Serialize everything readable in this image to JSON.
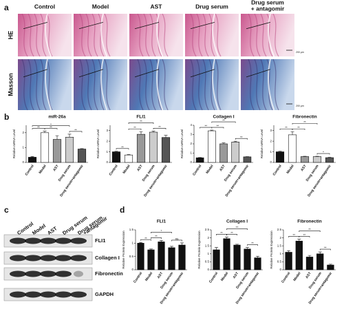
{
  "panel_labels": [
    "a",
    "b",
    "c",
    "d"
  ],
  "histology": {
    "columns": [
      [
        "Control"
      ],
      [
        "Model"
      ],
      [
        "AST"
      ],
      [
        "Drug serum"
      ],
      [
        "Drug serum",
        "+ antagomir"
      ]
    ],
    "rows": [
      "HE",
      "Masson"
    ],
    "scale_bar": "200 μm"
  },
  "western_blot": {
    "lanes": [
      [
        "Control"
      ],
      [
        "Model"
      ],
      [
        "AST"
      ],
      [
        "Drug serum"
      ],
      [
        "Drug serum",
        "+antagomir"
      ]
    ],
    "bands": [
      "FLI1",
      "Collagen I",
      "Fibronectin",
      "GAPDH"
    ]
  },
  "chart_data": [
    {
      "type": "bar",
      "title": "miR-26a",
      "y_label": "Relative mRNA Level",
      "categories": [
        "Control",
        "Model",
        "AST",
        "Drug serum",
        "Drug serum+antagomir"
      ],
      "values": [
        0.35,
        2.0,
        1.55,
        1.7,
        0.9
      ],
      "errors": [
        0.05,
        0.1,
        0.25,
        0.2,
        0.03
      ],
      "colors": [
        "#111111",
        "#ffffff",
        "#999999",
        "#cccccc",
        "#555555"
      ],
      "ylim": [
        0,
        2.5
      ],
      "yticks": [
        0,
        1,
        2
      ],
      "significance": [
        {
          "label": "**",
          "between": [
            "Control",
            "Model"
          ]
        },
        {
          "label": "*",
          "between": [
            "Control",
            "Drug serum"
          ]
        },
        {
          "label": "**",
          "between": [
            "Model",
            "AST"
          ]
        },
        {
          "label": "**",
          "between": [
            "Drug serum",
            "Drug serum+antagomir"
          ]
        }
      ]
    },
    {
      "type": "bar",
      "title": "FLI1",
      "y_label": "Relative mRNA Level",
      "categories": [
        "Control",
        "Model",
        "AST",
        "Drug serum",
        "Drug serum+antagomir"
      ],
      "values": [
        1.0,
        0.7,
        2.65,
        2.85,
        2.35
      ],
      "errors": [
        0.05,
        0.04,
        0.25,
        0.1,
        0.2
      ],
      "colors": [
        "#111111",
        "#ffffff",
        "#999999",
        "#cccccc",
        "#555555"
      ],
      "ylim": [
        0,
        3.5
      ],
      "yticks": [
        0,
        1,
        2,
        3
      ],
      "significance": [
        {
          "label": "**",
          "between": [
            "Control",
            "Model"
          ]
        },
        {
          "label": "**",
          "between": [
            "Model",
            "AST"
          ]
        },
        {
          "label": "**",
          "between": [
            "Model",
            "Drug serum"
          ]
        },
        {
          "label": "**",
          "between": [
            "Drug serum",
            "Drug serum+antagomir"
          ]
        }
      ]
    },
    {
      "type": "bar",
      "title": "Collagen I",
      "y_label": "Relative mRNA Level",
      "categories": [
        "Control",
        "Model",
        "AST",
        "Drug serum",
        "Drug serum+antagomir"
      ],
      "values": [
        0.5,
        3.4,
        2.0,
        2.2,
        0.6
      ],
      "errors": [
        0.03,
        0.08,
        0.1,
        0.08,
        0.03
      ],
      "colors": [
        "#111111",
        "#ffffff",
        "#999999",
        "#cccccc",
        "#555555"
      ],
      "ylim": [
        0,
        4
      ],
      "yticks": [
        0,
        1,
        2,
        3,
        4
      ],
      "significance": [
        {
          "label": "**",
          "between": [
            "Control",
            "Model"
          ]
        },
        {
          "label": "**",
          "between": [
            "Model",
            "AST"
          ]
        },
        {
          "label": "**",
          "between": [
            "Model",
            "Drug serum"
          ]
        },
        {
          "label": "**",
          "between": [
            "Drug serum",
            "Drug serum+antagomir"
          ]
        }
      ]
    },
    {
      "type": "bar",
      "title": "Fibronectin",
      "y_label": "Relative mRNA Level",
      "categories": [
        "Control",
        "Model",
        "AST",
        "Drug serum",
        "Drug serum+antagomir"
      ],
      "values": [
        1.0,
        2.6,
        0.55,
        0.55,
        0.45
      ],
      "errors": [
        0.05,
        0.3,
        0.03,
        0.03,
        0.03
      ],
      "colors": [
        "#111111",
        "#ffffff",
        "#999999",
        "#cccccc",
        "#555555"
      ],
      "ylim": [
        0,
        3.5
      ],
      "yticks": [
        0,
        1,
        2,
        3
      ],
      "significance": [
        {
          "label": "**",
          "between": [
            "Control",
            "Model"
          ]
        },
        {
          "label": "**",
          "between": [
            "Model",
            "AST"
          ]
        },
        {
          "label": "**",
          "between": [
            "Model",
            "Drug serum"
          ]
        },
        {
          "label": "*",
          "between": [
            "Drug serum",
            "Drug serum+antagomir"
          ]
        }
      ]
    },
    {
      "type": "bar",
      "title": "FLI1",
      "y_label": "Relative Protein Expression",
      "categories": [
        "Control",
        "Model",
        "AST",
        "Drug serum",
        "Drug serum+antagomir"
      ],
      "values": [
        1.0,
        0.75,
        1.05,
        0.83,
        0.93
      ],
      "errors": [
        0.03,
        0.03,
        0.05,
        0.05,
        0.08
      ],
      "colors": [
        "#111111",
        "#111111",
        "#111111",
        "#111111",
        "#111111"
      ],
      "ylim": [
        0,
        1.5
      ],
      "yticks": [
        0,
        0.5,
        1,
        1.5
      ],
      "significance": [
        {
          "label": "**",
          "between": [
            "Control",
            "Model"
          ]
        },
        {
          "label": "**",
          "between": [
            "Model",
            "AST"
          ]
        },
        {
          "label": "*",
          "between": [
            "Model",
            "Drug serum"
          ]
        },
        {
          "label": "ns",
          "between": [
            "Drug serum",
            "Drug serum+antagomir"
          ]
        }
      ]
    },
    {
      "type": "bar",
      "title": "Collagen I",
      "y_label": "Relative Protein Expression",
      "categories": [
        "Control",
        "Model",
        "AST",
        "Drug serum",
        "Drug serum+antagomir"
      ],
      "values": [
        1.25,
        1.95,
        1.55,
        1.3,
        0.75
      ],
      "errors": [
        0.15,
        0.1,
        0.05,
        0.1,
        0.1
      ],
      "colors": [
        "#111111",
        "#111111",
        "#111111",
        "#111111",
        "#111111"
      ],
      "ylim": [
        0,
        2.5
      ],
      "yticks": [
        0,
        0.5,
        1,
        1.5,
        2,
        2.5
      ],
      "significance": [
        {
          "label": "**",
          "between": [
            "Control",
            "Model"
          ]
        },
        {
          "label": "**",
          "between": [
            "Model",
            "AST"
          ]
        },
        {
          "label": "**",
          "between": [
            "Model",
            "Drug serum"
          ]
        },
        {
          "label": "**",
          "between": [
            "Drug serum",
            "Drug serum+antagomir"
          ]
        }
      ]
    },
    {
      "type": "bar",
      "title": "Fibronectin",
      "y_label": "Relative Protein Expression",
      "categories": [
        "Control",
        "Model",
        "AST",
        "Drug serum",
        "Drug serum+antagomir"
      ],
      "values": [
        1.1,
        1.8,
        0.8,
        1.0,
        0.3
      ],
      "errors": [
        0.1,
        0.12,
        0.1,
        0.12,
        0.05
      ],
      "colors": [
        "#111111",
        "#111111",
        "#111111",
        "#111111",
        "#111111"
      ],
      "ylim": [
        0,
        2.5
      ],
      "yticks": [
        0,
        0.5,
        1,
        1.5,
        2,
        2.5
      ],
      "significance": [
        {
          "label": "**",
          "between": [
            "Control",
            "Model"
          ]
        },
        {
          "label": "**",
          "between": [
            "Model",
            "AST"
          ]
        },
        {
          "label": "**",
          "between": [
            "Model",
            "Drug serum"
          ]
        },
        {
          "label": "**",
          "between": [
            "Drug serum",
            "Drug serum+antagomir"
          ]
        }
      ]
    }
  ]
}
